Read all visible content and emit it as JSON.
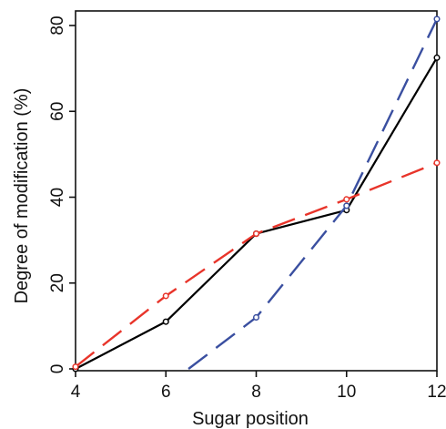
{
  "chart_data": {
    "type": "line",
    "title": "",
    "xlabel": "Sugar position",
    "ylabel": "Degree of modification (%)",
    "xlim": [
      4,
      12
    ],
    "ylim": [
      0,
      80
    ],
    "xticks": [
      4,
      6,
      8,
      10,
      12
    ],
    "yticks": [
      0,
      20,
      40,
      60,
      80
    ],
    "grid": false,
    "legend": "none",
    "series": [
      {
        "color": "#000000",
        "style": "solid",
        "x": [
          4,
          6,
          8,
          10,
          12
        ],
        "y": [
          0,
          11,
          31.5,
          37,
          72.5
        ]
      },
      {
        "color": "#e8342a",
        "style": "dashed",
        "x": [
          4,
          6,
          8,
          10,
          12
        ],
        "y": [
          0.5,
          17,
          31.5,
          39.5,
          48
        ]
      },
      {
        "color": "#3a4fa0",
        "style": "dashed",
        "x": [
          6.5,
          8,
          10,
          12
        ],
        "y": [
          0,
          12,
          38,
          81.5
        ],
        "markers_from_index": 1
      }
    ]
  }
}
